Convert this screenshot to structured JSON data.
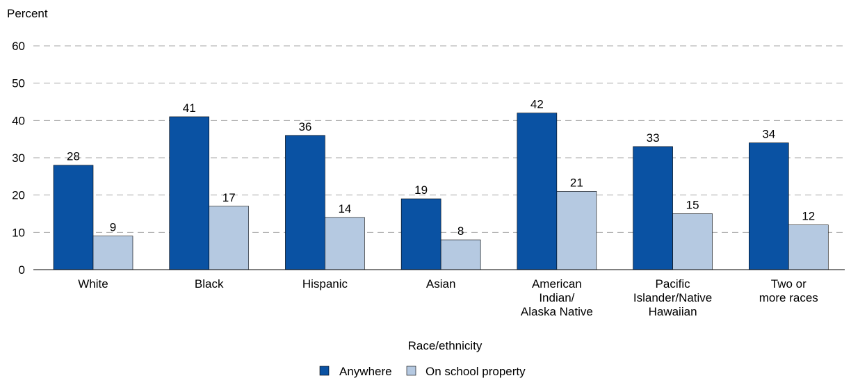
{
  "chart_data": {
    "type": "bar",
    "title": "",
    "ylabel": "Percent",
    "xlabel": "Race/ethnicity",
    "ylim": [
      0,
      60
    ],
    "yticks": [
      0,
      10,
      20,
      30,
      40,
      50,
      60
    ],
    "grid": true,
    "legend_position": "bottom-center",
    "categories": [
      [
        "White"
      ],
      [
        "Black"
      ],
      [
        "Hispanic"
      ],
      [
        "Asian"
      ],
      [
        "American",
        "Indian/",
        "Alaska Native"
      ],
      [
        "Pacific",
        "Islander/Native",
        "Hawaiian"
      ],
      [
        "Two or",
        "more races"
      ]
    ],
    "series": [
      {
        "name": "Anywhere",
        "color": "#0a52a3",
        "values": [
          28,
          41,
          36,
          19,
          42,
          33,
          34
        ]
      },
      {
        "name": "On school property",
        "color": "#b5c9e1",
        "values": [
          9,
          17,
          14,
          8,
          21,
          15,
          12
        ]
      }
    ]
  }
}
